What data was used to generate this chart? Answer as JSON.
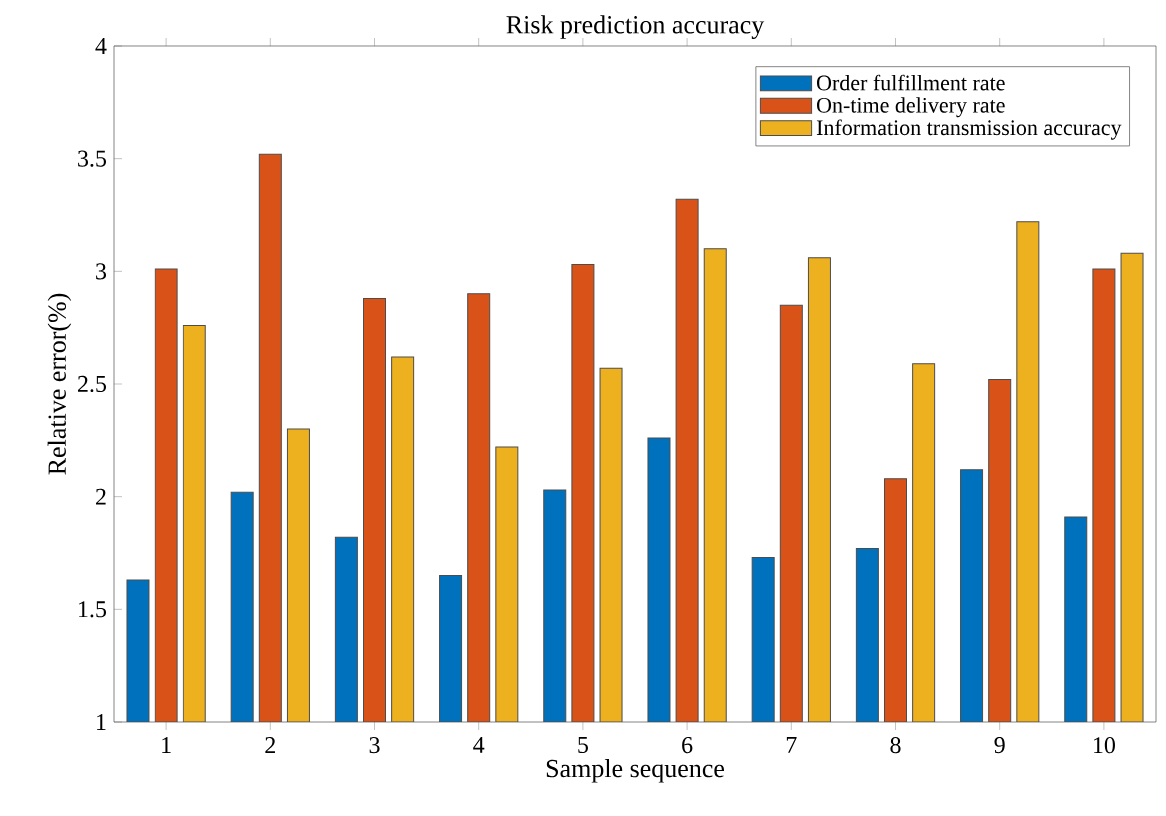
{
  "chart_data": {
    "type": "bar",
    "title": "Risk prediction accuracy",
    "xlabel": "Sample sequence",
    "ylabel": "Relative error(%)",
    "categories": [
      "1",
      "2",
      "3",
      "4",
      "5",
      "6",
      "7",
      "8",
      "9",
      "10"
    ],
    "series": [
      {
        "name": "Order fulfillment rate",
        "color": "#0072bd",
        "values": [
          1.63,
          2.02,
          1.82,
          1.65,
          2.03,
          2.26,
          1.73,
          1.77,
          2.12,
          1.91
        ]
      },
      {
        "name": "On-time delivery rate",
        "color": "#d95319",
        "values": [
          3.01,
          3.52,
          2.88,
          2.9,
          3.03,
          3.32,
          2.85,
          2.08,
          2.52,
          3.01
        ]
      },
      {
        "name": "Information transmission accuracy",
        "color": "#edb120",
        "values": [
          2.76,
          2.3,
          2.62,
          2.22,
          2.57,
          3.1,
          3.06,
          2.59,
          3.22,
          3.08
        ]
      }
    ],
    "ylim": [
      1,
      4
    ],
    "yticks": [
      1,
      1.5,
      2,
      2.5,
      3,
      3.5,
      4
    ],
    "legend": "top right"
  }
}
